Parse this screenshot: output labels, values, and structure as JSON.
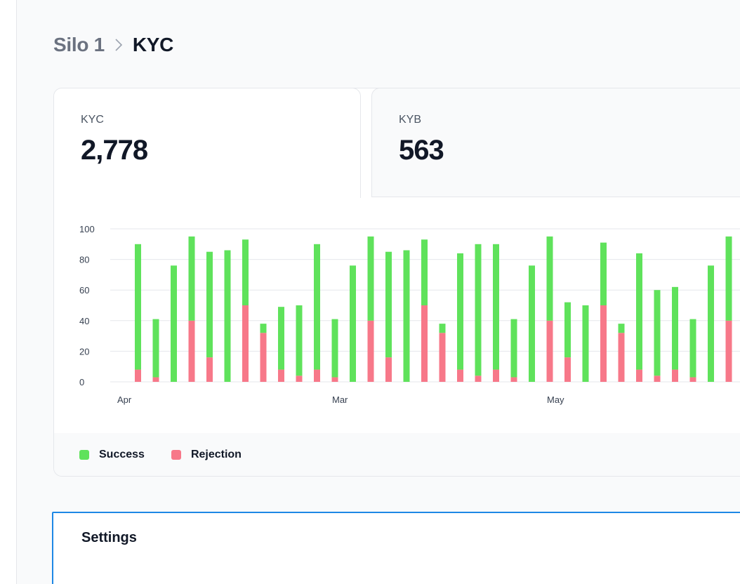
{
  "breadcrumb": {
    "parent": "Silo 1",
    "current": "KYC"
  },
  "tabs": [
    {
      "label": "KYC",
      "value": "2,778"
    },
    {
      "label": "KYB",
      "value": "563"
    }
  ],
  "legend": {
    "success_label": "Success",
    "rejection_label": "Rejection"
  },
  "colors": {
    "success": "#5fe25b",
    "rejection": "#f77889",
    "accent": "#1e88e5"
  },
  "settings": {
    "title": "Settings"
  },
  "chart_data": {
    "type": "bar",
    "stacked": true,
    "ylim": [
      0,
      100
    ],
    "yticks": [
      0,
      20,
      40,
      60,
      80,
      100
    ],
    "x_tick_labels": [
      {
        "label": "Apr",
        "index": 0
      },
      {
        "label": "Mar",
        "index": 12
      },
      {
        "label": "May",
        "index": 24
      }
    ],
    "grid": true,
    "legend_position": "bottom-left",
    "series": [
      {
        "name": "Success",
        "values": [
          82,
          38,
          76,
          55,
          69,
          86,
          43,
          6,
          41,
          46,
          82,
          38,
          76,
          55,
          69,
          86,
          43,
          6,
          76,
          86,
          82,
          38,
          76,
          55,
          36,
          50,
          41,
          6,
          76,
          56,
          54,
          38,
          76,
          55
        ]
      },
      {
        "name": "Rejection",
        "values": [
          8,
          3,
          0,
          40,
          16,
          0,
          50,
          32,
          8,
          4,
          8,
          3,
          0,
          40,
          16,
          0,
          50,
          32,
          8,
          4,
          8,
          3,
          0,
          40,
          16,
          0,
          50,
          32,
          8,
          4,
          8,
          3,
          0,
          40
        ]
      }
    ]
  }
}
